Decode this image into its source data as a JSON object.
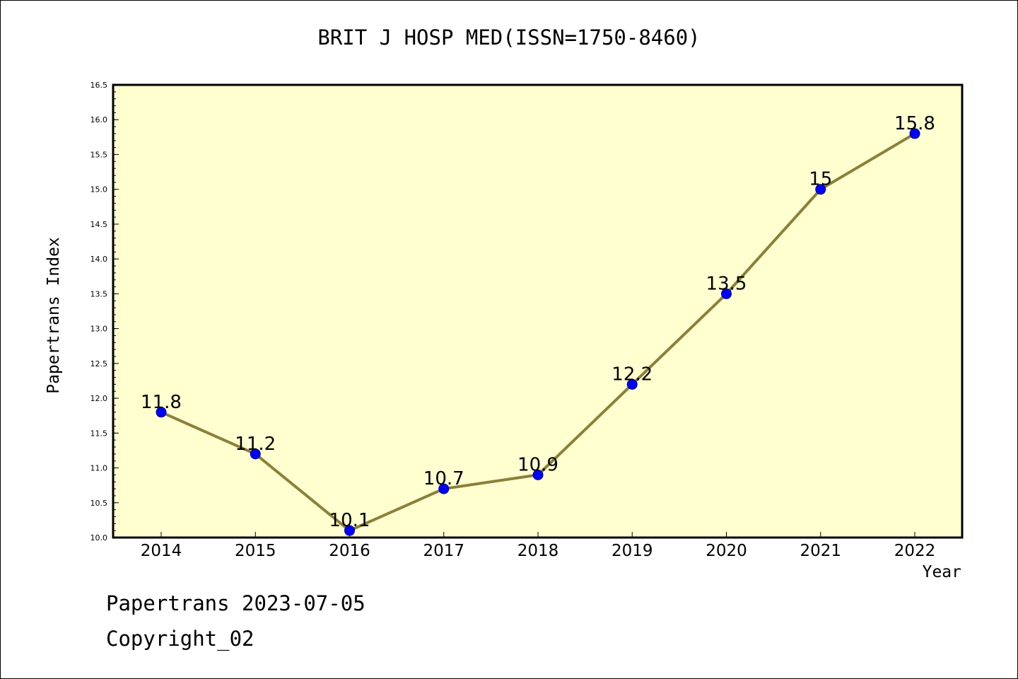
{
  "chart_data": {
    "type": "line",
    "title": "BRIT J HOSP MED(ISSN=1750-8460)",
    "xlabel": "Year",
    "ylabel": "Papertrans Index",
    "categories": [
      "2014",
      "2015",
      "2016",
      "2017",
      "2018",
      "2019",
      "2020",
      "2021",
      "2022"
    ],
    "series": [
      {
        "name": "Papertrans Index",
        "values": [
          11.8,
          11.2,
          10.1,
          10.7,
          10.9,
          12.2,
          13.5,
          15,
          15.8
        ],
        "labels": [
          "11.8",
          "11.2",
          "10.1",
          "10.7",
          "10.9",
          "12.2",
          "13.5",
          "15",
          "15.8"
        ]
      }
    ],
    "ylim": [
      10.0,
      16.5
    ],
    "yticks": [
      "10.0",
      "10.5",
      "11.0",
      "11.5",
      "12.0",
      "12.5",
      "13.0",
      "13.5",
      "14.0",
      "14.5",
      "15.0",
      "15.5",
      "16.0",
      "16.5"
    ],
    "grid": false,
    "colors": {
      "plot_background": "#ffffd0",
      "line": "#8b8038",
      "marker_fill": "#0000ff",
      "marker_edge": "#000080"
    }
  },
  "footer": {
    "line1": "Papertrans 2023-07-05",
    "line2": "Copyright_02"
  }
}
